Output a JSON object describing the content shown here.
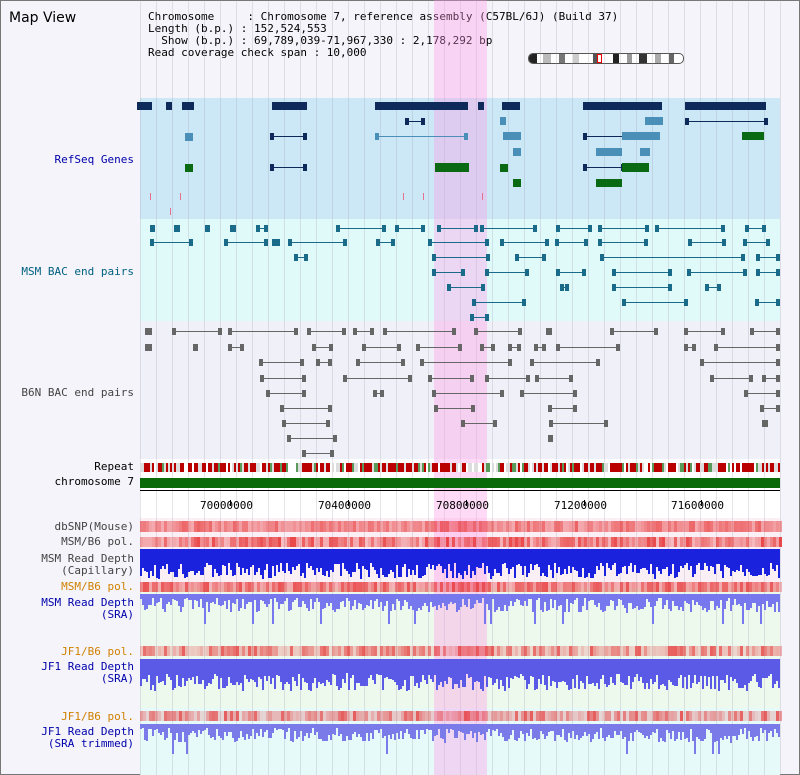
{
  "title": "Map View",
  "info": {
    "line1": "Chromosome     : Chromosome 7, reference assembly (C57BL/6J) (Build 37)",
    "line2": "Length (b.p.) : 152,524,553",
    "line3": "  Show (b.p.) : 69,789,039-71,967,330 : 2,178,292 bp",
    "line4": "Read coverage check span : 10,000"
  },
  "labels": {
    "refseq": "RefSeq Genes",
    "msm_bac": "MSM BAC end pairs",
    "b6n_bac": "B6N BAC end pairs",
    "repeat": "Repeat",
    "chromosome": "chromosome 7",
    "dbsnp": "dbSNP(Mouse)",
    "msm_b6_pol_1": "MSM/B6 pol.",
    "msm_depth_cap": "MSM Read Depth\n(Capillary)",
    "msm_b6_pol_2": "MSM/B6 pol.",
    "msm_depth_sra": "MSM Read Depth\n(SRA)",
    "jf1_b6_pol_1": "JF1/B6 pol.",
    "jf1_depth_sra": "JF1 Read Depth\n(SRA)",
    "jf1_b6_pol_2": "JF1/B6 pol.",
    "jf1_depth_trim": "JF1 Read Depth\n(SRA trimmed)"
  },
  "axis_ticks": [
    "70000000",
    "70400000",
    "70800000",
    "71200000",
    "71600000"
  ],
  "colors": {
    "refseq_bg": "#cce8f6",
    "msm_bg": "#e0fafa",
    "b6n_bg": "#f0f0f8",
    "gene_dark": "#0d2a5a",
    "gene_blue": "#4a8fb8",
    "gene_green": "#0a6a14",
    "msm_feature": "#1a6a8a",
    "b6n_feature": "#666666",
    "chromosome": "#0a6a0a",
    "highlight": "#ff9ae6"
  }
}
